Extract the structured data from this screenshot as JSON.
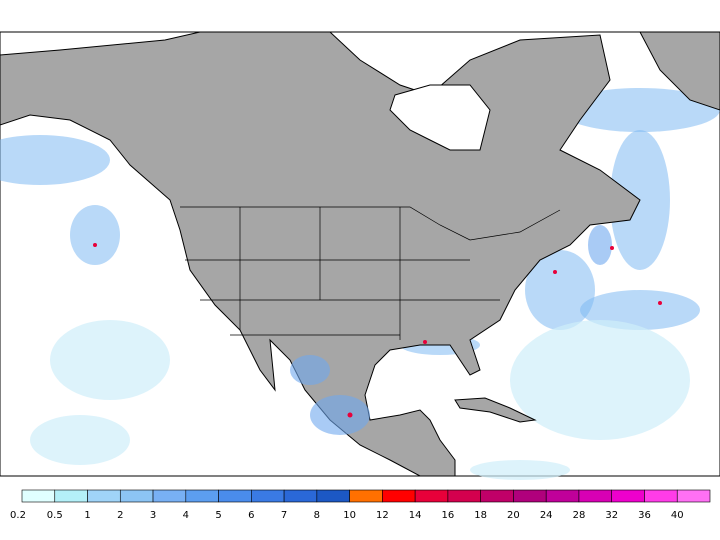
{
  "colorbar": {
    "levels": [
      0.2,
      0.5,
      1,
      2,
      3,
      4,
      5,
      6,
      7,
      8,
      10,
      12,
      14,
      16,
      18,
      20,
      24,
      28,
      32,
      36,
      40
    ],
    "colors": [
      "#e0ffff",
      "#b4f0f8",
      "#a0d4f8",
      "#8cc4f4",
      "#78b0f4",
      "#5c9ef0",
      "#4a8cec",
      "#3a7ae4",
      "#2a68d8",
      "#1c58c4",
      "#ff7000",
      "#ff0000",
      "#e8003a",
      "#d4004e",
      "#c00068",
      "#b0007c",
      "#c0009a",
      "#d800b4",
      "#ee00cc",
      "#ff3ce8",
      "#ff70f4"
    ]
  }
}
